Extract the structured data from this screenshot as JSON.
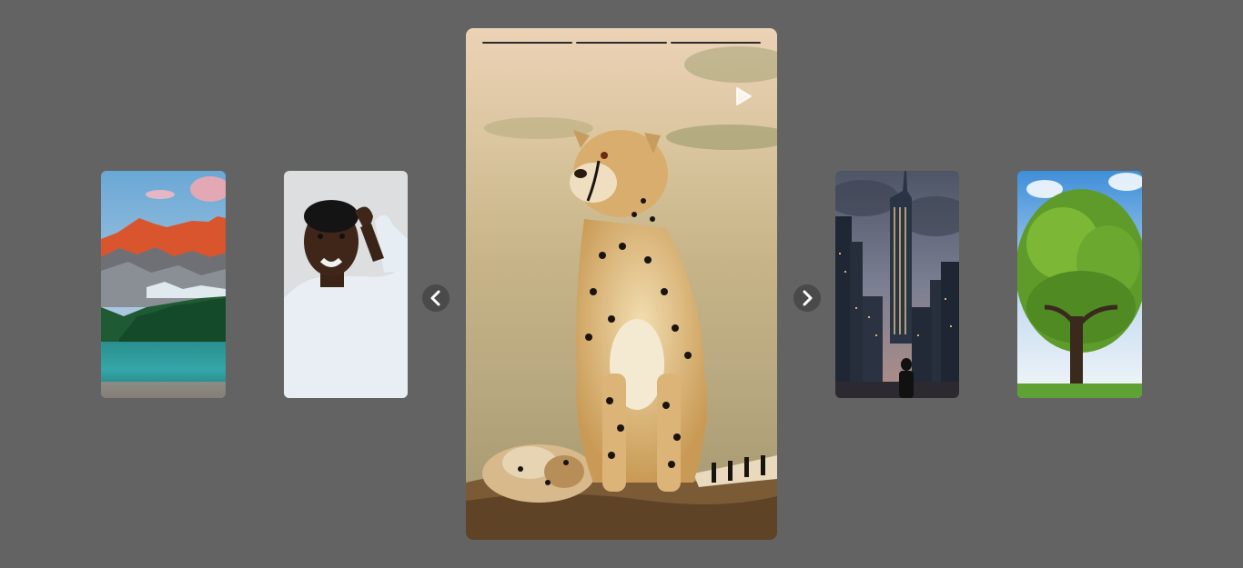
{
  "story_viewer": {
    "background_color": "#636363",
    "progress": {
      "segments": [
        {
          "state": "complete",
          "fill": 1.0
        },
        {
          "state": "complete",
          "fill": 1.0
        },
        {
          "state": "complete",
          "fill": 1.0
        }
      ]
    },
    "main_story": {
      "subject": "cheetah-with-cub",
      "play_icon": "play-icon"
    },
    "thumbnails": [
      {
        "subject": "mountain-lake"
      },
      {
        "subject": "man-scratching-head"
      },
      {
        "subject": "city-skyline-at-dusk"
      },
      {
        "subject": "green-tree"
      }
    ],
    "navigation": {
      "prev_icon": "chevron-left-icon",
      "next_icon": "chevron-right-icon"
    }
  }
}
